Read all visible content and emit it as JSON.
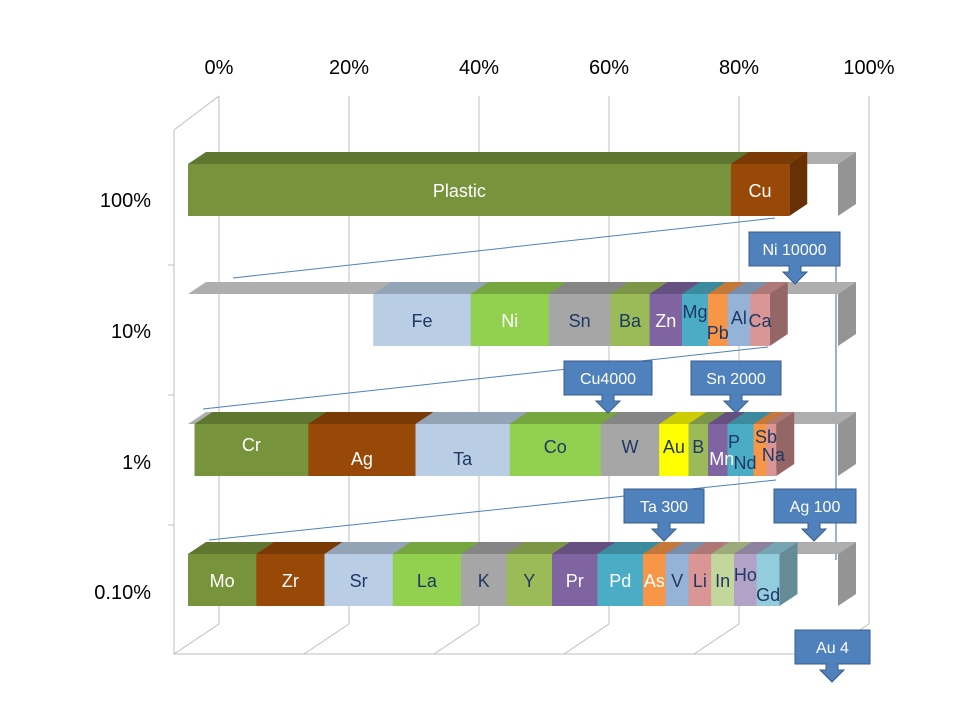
{
  "chart_data": {
    "type": "bar",
    "orientation": "horizontal",
    "stacked": true,
    "three_d": true,
    "x_ticks": [
      "0%",
      "20%",
      "40%",
      "60%",
      "80%",
      "100%"
    ],
    "xlim": [
      0,
      100
    ],
    "grid": true,
    "legend": "none",
    "rows": [
      {
        "label": "100%",
        "segments": [
          {
            "name": "Plastic",
            "start": 0,
            "value": 83.5,
            "color": "#77933C",
            "text_color": "#ffffff"
          },
          {
            "name": "Cu",
            "start": 83.5,
            "value": 9,
            "color": "#984807",
            "text_color": "#ffffff"
          }
        ]
      },
      {
        "label": "10%",
        "segments": [
          {
            "name": "Fe",
            "start": 28.5,
            "value": 15,
            "color": "#B9CDE5",
            "text_color": "#1f3864"
          },
          {
            "name": "Ni",
            "start": 43.5,
            "value": 12,
            "color": "#92D050",
            "text_color": "#ffffff"
          },
          {
            "name": "Sn",
            "start": 55.5,
            "value": 9.5,
            "color": "#A6A6A6",
            "text_color": "#1f3864"
          },
          {
            "name": "Ba",
            "start": 65,
            "value": 6,
            "color": "#9BBB59",
            "text_color": "#1f3864"
          },
          {
            "name": "Zn",
            "start": 71,
            "value": 5,
            "color": "#8064A2",
            "text_color": "#ffffff"
          },
          {
            "name": "Mg",
            "start": 76,
            "value": 4,
            "color": "#4BACC6",
            "text_color": "#1f3864"
          },
          {
            "name": "Pb",
            "start": 80,
            "value": 3,
            "color": "#F79646",
            "text_color": "#1f3864"
          },
          {
            "name": "Al",
            "start": 83,
            "value": 3.5,
            "color": "#95B3D7",
            "text_color": "#1f3864"
          },
          {
            "name": "Ca",
            "start": 86.5,
            "value": 3,
            "color": "#D99694",
            "text_color": "#1f3864"
          }
        ]
      },
      {
        "label": "1%",
        "segments": [
          {
            "name": "Cr",
            "start": 1,
            "value": 17.5,
            "color": "#77933C",
            "text_color": "#ffffff"
          },
          {
            "name": "Ag",
            "start": 18.5,
            "value": 16.5,
            "color": "#984807",
            "text_color": "#ffffff"
          },
          {
            "name": "Ta",
            "start": 35,
            "value": 14.5,
            "color": "#B9CDE5",
            "text_color": "#1f3864"
          },
          {
            "name": "Co",
            "start": 49.5,
            "value": 14,
            "color": "#92D050",
            "text_color": "#1f3864"
          },
          {
            "name": "W",
            "start": 63.5,
            "value": 9,
            "color": "#A6A6A6",
            "text_color": "#1f3864"
          },
          {
            "name": "Au",
            "start": 72.5,
            "value": 4.5,
            "color": "#FFFF00",
            "text_color": "#1f3864"
          },
          {
            "name": "B",
            "start": 77,
            "value": 3,
            "color": "#9BBB59",
            "text_color": "#1f3864"
          },
          {
            "name": "Mn",
            "start": 80,
            "value": 3,
            "color": "#8064A2",
            "text_color": "#ffffff"
          },
          {
            "name": "P",
            "start": 83,
            "value": 2,
            "color": "#4BACC6",
            "text_color": "#1f3864"
          },
          {
            "name": "Nd",
            "start": 85,
            "value": 2,
            "color": "#4BACC6",
            "text_color": "#1f3864"
          },
          {
            "name": "Sb",
            "start": 87,
            "value": 2,
            "color": "#F79646",
            "text_color": "#1f3864"
          },
          {
            "name": "Na",
            "start": 89,
            "value": 1.5,
            "color": "#D99694",
            "text_color": "#1f3864"
          }
        ]
      },
      {
        "label": "0.10%",
        "segments": [
          {
            "name": "Mo",
            "start": 0,
            "value": 10.5,
            "color": "#77933C",
            "text_color": "#ffffff"
          },
          {
            "name": "Zr",
            "start": 10.5,
            "value": 10.5,
            "color": "#984807",
            "text_color": "#ffffff"
          },
          {
            "name": "Sr",
            "start": 21,
            "value": 10.5,
            "color": "#B9CDE5",
            "text_color": "#1f3864"
          },
          {
            "name": "La",
            "start": 31.5,
            "value": 10.5,
            "color": "#92D050",
            "text_color": "#1f3864"
          },
          {
            "name": "K",
            "start": 42,
            "value": 7,
            "color": "#A6A6A6",
            "text_color": "#1f3864"
          },
          {
            "name": "Y",
            "start": 49,
            "value": 7,
            "color": "#9BBB59",
            "text_color": "#1f3864"
          },
          {
            "name": "Pr",
            "start": 56,
            "value": 7,
            "color": "#8064A2",
            "text_color": "#ffffff"
          },
          {
            "name": "Pd",
            "start": 63,
            "value": 7,
            "color": "#4BACC6",
            "text_color": "#ffffff"
          },
          {
            "name": "As",
            "start": 70,
            "value": 3.5,
            "color": "#F79646",
            "text_color": "#ffffff"
          },
          {
            "name": "V",
            "start": 73.5,
            "value": 3.5,
            "color": "#95B3D7",
            "text_color": "#1f3864"
          },
          {
            "name": "Li",
            "start": 77,
            "value": 3.5,
            "color": "#D99694",
            "text_color": "#1f3864"
          },
          {
            "name": "In",
            "start": 80.5,
            "value": 3.5,
            "color": "#C3D69B",
            "text_color": "#1f3864"
          },
          {
            "name": "Ho",
            "start": 84,
            "value": 3.5,
            "color": "#B3A2C7",
            "text_color": "#1f3864"
          },
          {
            "name": "Gd",
            "start": 87.5,
            "value": 3.5,
            "color": "#93CDDD",
            "text_color": "#1f3864"
          }
        ]
      }
    ],
    "callouts": [
      {
        "text": "Ni 10000",
        "row": 1,
        "x": 92
      },
      {
        "text": "Cu4000",
        "row": 2,
        "x": 63
      },
      {
        "text": "Sn 2000",
        "row": 2,
        "x": 81
      },
      {
        "text": "Ta 300",
        "row": 3,
        "x": 69
      },
      {
        "text": "Ag 100",
        "row": 3,
        "x": 96
      },
      {
        "text": "Au 4",
        "row": 4,
        "x": 98
      }
    ],
    "colors": {
      "background_bar": "#D9D9D9",
      "grid": "#BFBFBF",
      "callout_fill": "#4F81BD",
      "callout_text": "#ffffff",
      "connector": "#4F81BD",
      "axis_text": "#000000"
    }
  }
}
